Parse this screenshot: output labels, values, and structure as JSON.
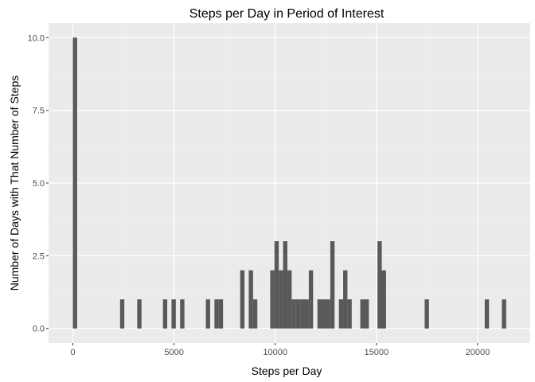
{
  "chart_data": {
    "type": "bar",
    "title": "Steps per Day in Period of Interest",
    "xlabel": "Steps per Day",
    "ylabel": "Number of Days with That Number of Steps",
    "xlim": [
      -1200,
      22600
    ],
    "ylim": [
      -0.5,
      10.5
    ],
    "bin_width": 212,
    "x_ticks": [
      0,
      5000,
      10000,
      15000,
      20000
    ],
    "x_tick_labels": [
      "0",
      "5000",
      "10000",
      "15000",
      "20000"
    ],
    "y_ticks": [
      0,
      2.5,
      5,
      7.5,
      10
    ],
    "y_tick_labels": [
      "0.0",
      "2.5",
      "5.0",
      "7.5",
      "10.0"
    ],
    "grid": true,
    "bar_color": "#595959",
    "panel_color": "#ebebeb",
    "bars": [
      {
        "x": 106,
        "count": 10
      },
      {
        "x": 2438,
        "count": 1
      },
      {
        "x": 3286,
        "count": 1
      },
      {
        "x": 4558,
        "count": 1
      },
      {
        "x": 4982,
        "count": 1
      },
      {
        "x": 5406,
        "count": 1
      },
      {
        "x": 6678,
        "count": 1
      },
      {
        "x": 7102,
        "count": 1
      },
      {
        "x": 7314,
        "count": 1
      },
      {
        "x": 8374,
        "count": 2
      },
      {
        "x": 8798,
        "count": 2
      },
      {
        "x": 9010,
        "count": 1
      },
      {
        "x": 9858,
        "count": 2
      },
      {
        "x": 10070,
        "count": 3
      },
      {
        "x": 10282,
        "count": 2
      },
      {
        "x": 10494,
        "count": 3
      },
      {
        "x": 10706,
        "count": 2
      },
      {
        "x": 10918,
        "count": 1
      },
      {
        "x": 11130,
        "count": 1
      },
      {
        "x": 11342,
        "count": 1
      },
      {
        "x": 11554,
        "count": 1
      },
      {
        "x": 11766,
        "count": 2
      },
      {
        "x": 12190,
        "count": 1
      },
      {
        "x": 12402,
        "count": 1
      },
      {
        "x": 12614,
        "count": 1
      },
      {
        "x": 12826,
        "count": 3
      },
      {
        "x": 13250,
        "count": 1
      },
      {
        "x": 13462,
        "count": 2
      },
      {
        "x": 13674,
        "count": 1
      },
      {
        "x": 14310,
        "count": 1
      },
      {
        "x": 14522,
        "count": 1
      },
      {
        "x": 15158,
        "count": 3
      },
      {
        "x": 15370,
        "count": 2
      },
      {
        "x": 17490,
        "count": 1
      },
      {
        "x": 20458,
        "count": 1
      },
      {
        "x": 21306,
        "count": 1
      }
    ]
  }
}
